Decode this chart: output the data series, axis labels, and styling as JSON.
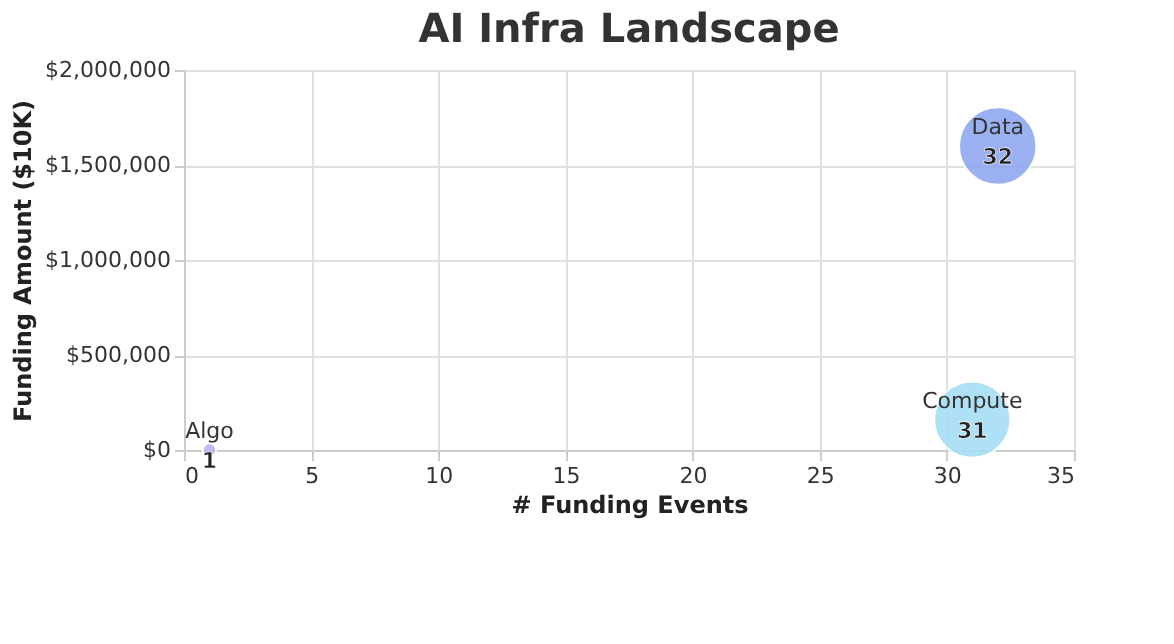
{
  "chart_data": {
    "type": "bubble",
    "title": "AI Infra Landscape",
    "xlabel": "# Funding Events",
    "ylabel": "Funding Amount ($10K)",
    "xlim": [
      0,
      35
    ],
    "xticks": [
      0,
      5,
      10,
      15,
      20,
      25,
      30,
      35
    ],
    "ylim": [
      0,
      2000000
    ],
    "yticks": [
      {
        "value": 0,
        "label": "$0"
      },
      {
        "value": 500000,
        "label": "$500,000"
      },
      {
        "value": 1000000,
        "label": "$1,000,000"
      },
      {
        "value": 1500000,
        "label": "$1,500,000"
      },
      {
        "value": 2000000,
        "label": "$2,000,000"
      }
    ],
    "grid": true,
    "annotations": [
      {
        "text": "1",
        "x": 1,
        "y": 0
      },
      {
        "text": "31",
        "x": 31,
        "y": 160000
      },
      {
        "text": "32",
        "x": 32,
        "y": 1600000
      }
    ],
    "series": [
      {
        "name": "Algo",
        "color": "#c4b0f0",
        "x": [
          1
        ],
        "values": [
          0
        ],
        "sizes": [
          0.03
        ]
      },
      {
        "name": "Compute",
        "color": "#a6def5",
        "x": [
          31
        ],
        "values": [
          160000
        ],
        "sizes": [
          0.97
        ]
      },
      {
        "name": "Data",
        "color": "#90a8f0",
        "x": [
          32
        ],
        "values": [
          1600000
        ],
        "sizes": [
          1
        ]
      }
    ]
  }
}
